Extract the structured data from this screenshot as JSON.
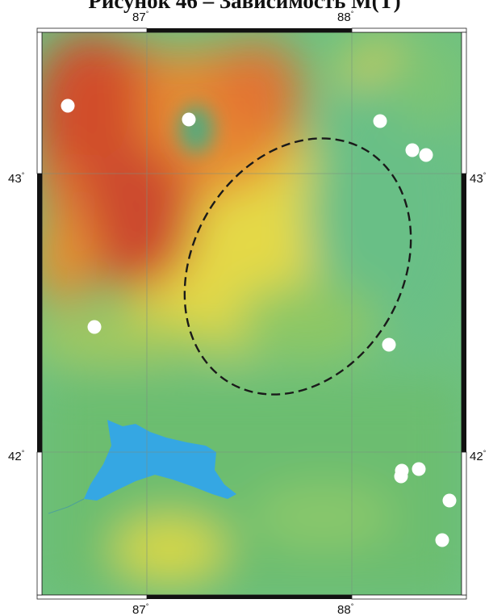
{
  "title": "Рисунок 46 – Зависимость М(Т)",
  "map": {
    "longitude_labels": [
      "87",
      "88"
    ],
    "latitude_labels": [
      "43",
      "42"
    ],
    "degree_symbol": "°",
    "colors": {
      "low": "#5fba7d",
      "mid": "#e3dc44",
      "high": "#d8502e",
      "lake": "#35a7e3",
      "station": "#ffffff",
      "ellipse": "#1a1a1a"
    },
    "stations_count": 14,
    "features": [
      "relief-color-map",
      "lake",
      "dashed-ellipse",
      "station-markers",
      "graticule"
    ]
  }
}
